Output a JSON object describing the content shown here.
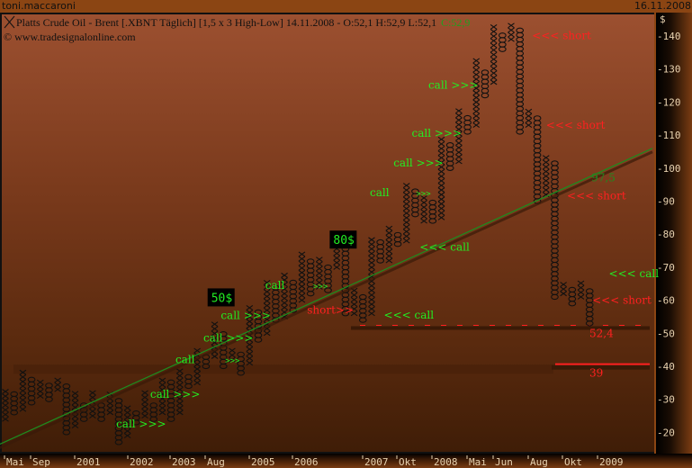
{
  "header": {
    "user": "toni.maccaroni",
    "date": "16.11.2008"
  },
  "chart_data": {
    "type": "point-and-figure",
    "title": "Platts Crude Oil - Brent [.XBNT  Täglich] [1,5 x 3 High-Low] 14.11.2008 - O:52,1 H:52,9 L:52,1",
    "close_label": "C:52,9",
    "copyright": "© www.tradesignalonline.com",
    "y_unit": "$",
    "ylim": [
      15,
      147
    ],
    "y_ticks": [
      20,
      30,
      40,
      50,
      60,
      70,
      80,
      90,
      100,
      110,
      120,
      130,
      140
    ],
    "x_ticks": [
      "Mai",
      "Sep",
      "2001",
      "2002",
      "2003",
      "Aug",
      "2005",
      "2006",
      "2007",
      "Okt",
      "2008",
      "Mai",
      "Jun",
      "Aug",
      "Okt",
      "2009"
    ],
    "box_size": 1.5,
    "columns": [
      [
        "X",
        24,
        33
      ],
      [
        "O",
        26,
        32
      ],
      [
        "X",
        27,
        39
      ],
      [
        "O",
        29,
        37
      ],
      [
        "X",
        31,
        36
      ],
      [
        "O",
        30,
        35
      ],
      [
        "X",
        33,
        36
      ],
      [
        "O",
        20,
        35
      ],
      [
        "X",
        22,
        32
      ],
      [
        "O",
        24,
        29
      ],
      [
        "X",
        25,
        32
      ],
      [
        "O",
        24,
        29
      ],
      [
        "X",
        26,
        32
      ],
      [
        "O",
        17,
        30
      ],
      [
        "X",
        19,
        28
      ],
      [
        "O",
        23,
        27
      ],
      [
        "X",
        25,
        32
      ],
      [
        "O",
        24,
        29
      ],
      [
        "X",
        26,
        37
      ],
      [
        "O",
        24,
        36
      ],
      [
        "X",
        26,
        39
      ],
      [
        "O",
        34,
        37
      ],
      [
        "X",
        35,
        46
      ],
      [
        "O",
        40,
        44
      ],
      [
        "X",
        43,
        53
      ],
      [
        "O",
        40,
        51
      ],
      [
        "X",
        42,
        46
      ],
      [
        "O",
        38,
        44
      ],
      [
        "X",
        41,
        59
      ],
      [
        "O",
        48,
        57
      ],
      [
        "X",
        50,
        66
      ],
      [
        "O",
        54,
        64
      ],
      [
        "X",
        55,
        68
      ],
      [
        "O",
        57,
        66
      ],
      [
        "X",
        60,
        75
      ],
      [
        "O",
        62,
        72
      ],
      [
        "X",
        64,
        73
      ],
      [
        "O",
        63,
        70
      ],
      [
        "X",
        70,
        79
      ],
      [
        "O",
        56,
        78
      ],
      [
        "X",
        56,
        64
      ],
      [
        "O",
        54,
        62
      ],
      [
        "X",
        56,
        79
      ],
      [
        "O",
        72,
        78
      ],
      [
        "X",
        72,
        82
      ],
      [
        "O",
        77,
        80
      ],
      [
        "X",
        78,
        96
      ],
      [
        "O",
        86,
        94
      ],
      [
        "X",
        84,
        92
      ],
      [
        "O",
        84,
        90
      ],
      [
        "X",
        85,
        109
      ],
      [
        "O",
        100,
        108
      ],
      [
        "X",
        102,
        118
      ],
      [
        "O",
        111,
        116
      ],
      [
        "X",
        113,
        133
      ],
      [
        "O",
        122,
        129
      ],
      [
        "X",
        126,
        144
      ],
      [
        "O",
        136,
        141
      ],
      [
        "X",
        139,
        144
      ],
      [
        "O",
        111,
        143
      ],
      [
        "X",
        113,
        118
      ],
      [
        "O",
        90,
        116
      ],
      [
        "X",
        92,
        104
      ],
      [
        "O",
        61,
        102
      ],
      [
        "X",
        62,
        66
      ],
      [
        "O",
        59,
        64
      ],
      [
        "X",
        61,
        66
      ],
      [
        "O",
        53,
        64
      ]
    ],
    "trendline": {
      "from": [
        -1,
        16
      ],
      "to": [
        74,
        106
      ],
      "color": "#1f8a1f"
    },
    "levels": [
      {
        "value": 52.4,
        "label": "52,4",
        "style": "dashed",
        "color": "#ff2020"
      },
      {
        "value": 39,
        "label": "39",
        "style": "solid",
        "color": "#ff2020"
      }
    ],
    "annotations": [
      {
        "text": "call >>>",
        "color": "#22ee22",
        "col": 12.7,
        "price": 21.5
      },
      {
        "text": "call >>>",
        "color": "#22ee22",
        "col": 16.6,
        "price": 30.5
      },
      {
        "text": "call",
        "color": "#22ee22",
        "col": 19.5,
        "price": 41
      },
      {
        "text": ">>>",
        "color": "#22ee22",
        "col": 25.2,
        "price": 41
      },
      {
        "text": "call >>>",
        "color": "#22ee22",
        "col": 22.7,
        "price": 47.5
      },
      {
        "text": "call >>>",
        "color": "#22ee22",
        "col": 24.7,
        "price": 56
      },
      {
        "text": "call",
        "color": "#22ee22",
        "col": 29.8,
        "price": 63.5
      },
      {
        "text": ">>>",
        "color": "#22ee22",
        "col": 35.3,
        "price": 63.5
      },
      {
        "text": "short>>",
        "color": "#ff2020",
        "col": 34.6,
        "price": 56
      },
      {
        "text": "<<< call",
        "color": "#22ee22",
        "col": 43.4,
        "price": 54.5
      },
      {
        "text": "<<< call",
        "color": "#22ee22",
        "col": 47.5,
        "price": 75
      },
      {
        "text": "call",
        "color": "#22ee22",
        "col": 41.8,
        "price": 91.5
      },
      {
        "text": ">>>",
        "color": "#22ee22",
        "col": 47.1,
        "price": 91.5
      },
      {
        "text": "call >>>",
        "color": "#22ee22",
        "col": 44.5,
        "price": 100.5
      },
      {
        "text": "call >>>",
        "color": "#22ee22",
        "col": 46.6,
        "price": 109.5
      },
      {
        "text": "call >>>",
        "color": "#22ee22",
        "col": 48.5,
        "price": 124
      },
      {
        "text": "<<< short",
        "color": "#ff2020",
        "col": 60.4,
        "price": 139
      },
      {
        "text": "<<< short",
        "color": "#ff2020",
        "col": 62,
        "price": 112
      },
      {
        "text": "97,5",
        "color": "#1f8a1f",
        "col": 67.2,
        "price": 96
      },
      {
        "text": "<<< short",
        "color": "#ff2020",
        "col": 64.4,
        "price": 90.5
      },
      {
        "text": "<<< call",
        "color": "#22ee22",
        "col": 69.2,
        "price": 67
      },
      {
        "text": "<<< short",
        "color": "#ff2020",
        "col": 67.3,
        "price": 59
      }
    ],
    "price_boxes": [
      {
        "text": "50$",
        "col": 23.5,
        "price": 59.5
      },
      {
        "text": "80$",
        "col": 37.5,
        "price": 77
      }
    ]
  }
}
